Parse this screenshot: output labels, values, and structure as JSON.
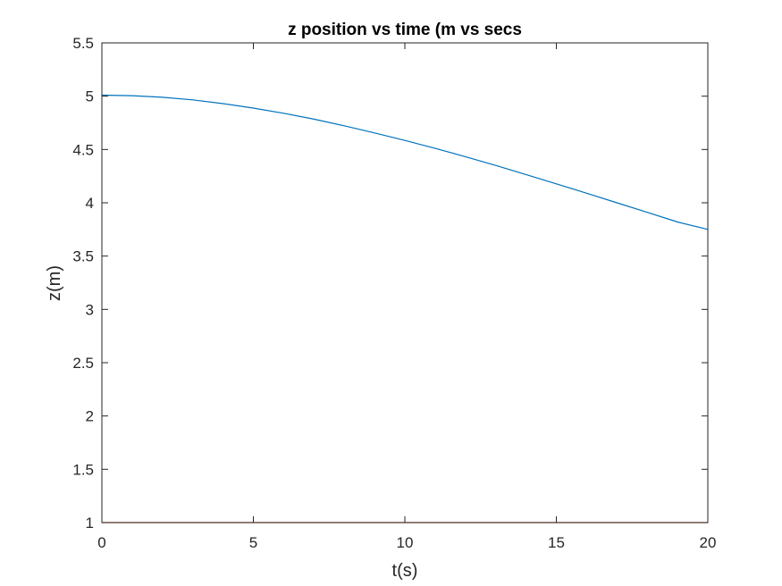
{
  "chart_data": {
    "type": "line",
    "title": "z position vs time (m vs secs",
    "xlabel": "t(s)",
    "ylabel": "z(m)",
    "xlim": [
      0,
      20
    ],
    "ylim": [
      1,
      5.5
    ],
    "xticks": [
      0,
      5,
      10,
      15,
      20
    ],
    "yticks": [
      1,
      1.5,
      2,
      2.5,
      3,
      3.5,
      4,
      4.5,
      5,
      5.5
    ],
    "xtick_labels": [
      "0",
      "5",
      "10",
      "15",
      "20"
    ],
    "ytick_labels": [
      "1",
      "1.5",
      "2",
      "2.5",
      "3",
      "3.5",
      "4",
      "4.5",
      "5",
      "5.5"
    ],
    "grid": false,
    "box": true,
    "series": [
      {
        "color": "#0072BD",
        "x": [
          0,
          1,
          2,
          3,
          4,
          5,
          6,
          7,
          8,
          9,
          10,
          11,
          12,
          13,
          14,
          15,
          16,
          17,
          18,
          19,
          20
        ],
        "y": [
          5.01,
          5.005,
          4.99,
          4.965,
          4.93,
          4.888,
          4.84,
          4.784,
          4.722,
          4.655,
          4.585,
          4.51,
          4.432,
          4.35,
          4.265,
          4.178,
          4.09,
          4.0,
          3.91,
          3.82,
          3.75
        ]
      },
      {
        "color": "#D95319",
        "x": [
          0,
          20
        ],
        "y": [
          1,
          1
        ]
      }
    ]
  }
}
